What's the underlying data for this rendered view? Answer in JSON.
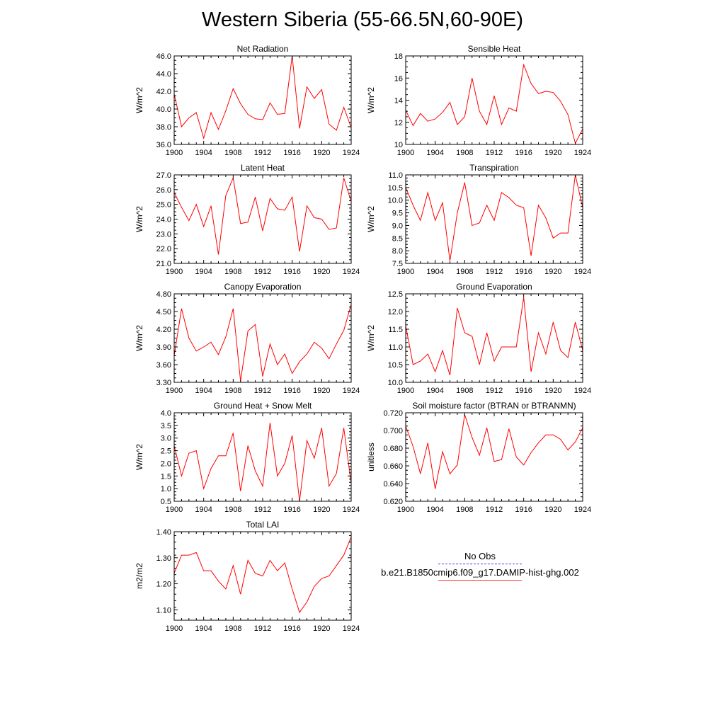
{
  "title": "Western Siberia (55-66.5N,60-90E)",
  "colors": {
    "model_line": "#ff0000",
    "obs_line": "#0000ff",
    "axis": "#000000"
  },
  "legend": {
    "placement": "bottom-right",
    "entries": [
      {
        "label": "No Obs",
        "style": "dashed",
        "color": "#0000ff"
      },
      {
        "label": "b.e21.B1850cmip6.f09_g17.DAMIP-hist-ghg.002",
        "style": "solid",
        "color": "#ff0000"
      }
    ]
  },
  "chart_data": [
    {
      "type": "line",
      "title": "Net Radiation",
      "ylabel": "W/m^2",
      "xlim": [
        1900,
        1924
      ],
      "ylim": [
        36.0,
        46.0
      ],
      "x_ticks": [
        1900,
        1904,
        1908,
        1912,
        1916,
        1920,
        1924
      ],
      "x_tick_labels": [
        "1900",
        "1904",
        "1908",
        "1912",
        "1916",
        "1920",
        "1924"
      ],
      "y_ticks": [
        36.0,
        38.0,
        40.0,
        42.0,
        44.0,
        46.0
      ],
      "y_tick_labels": [
        "36.0",
        "38.0",
        "40.0",
        "42.0",
        "44.0",
        "46.0"
      ],
      "x": [
        1900,
        1901,
        1902,
        1903,
        1904,
        1905,
        1906,
        1907,
        1908,
        1909,
        1910,
        1911,
        1912,
        1913,
        1914,
        1915,
        1916,
        1917,
        1918,
        1919,
        1920,
        1921,
        1922,
        1923,
        1924
      ],
      "series": [
        {
          "values": [
            41.7,
            38.0,
            39.0,
            39.6,
            36.7,
            39.6,
            37.7,
            39.8,
            42.3,
            40.6,
            39.4,
            38.9,
            38.8,
            40.7,
            39.4,
            39.5,
            46.0,
            37.8,
            42.5,
            41.2,
            42.2,
            38.3,
            37.6,
            40.2,
            37.9
          ]
        }
      ]
    },
    {
      "type": "line",
      "title": "Sensible Heat",
      "ylabel": "W/m^2",
      "xlim": [
        1900,
        1924
      ],
      "ylim": [
        10,
        18
      ],
      "x_ticks": [
        1900,
        1904,
        1908,
        1912,
        1916,
        1920,
        1924
      ],
      "x_tick_labels": [
        "1900",
        "1904",
        "1908",
        "1912",
        "1916",
        "1920",
        "1924"
      ],
      "y_ticks": [
        10,
        12,
        14,
        16,
        18
      ],
      "y_tick_labels": [
        "10",
        "12",
        "14",
        "16",
        "18"
      ],
      "x": [
        1900,
        1901,
        1902,
        1903,
        1904,
        1905,
        1906,
        1907,
        1908,
        1909,
        1910,
        1911,
        1912,
        1913,
        1914,
        1915,
        1916,
        1917,
        1918,
        1919,
        1920,
        1921,
        1922,
        1923,
        1924
      ],
      "series": [
        {
          "values": [
            13.1,
            11.7,
            12.8,
            12.1,
            12.3,
            12.9,
            13.8,
            11.8,
            12.5,
            16.0,
            13.0,
            11.8,
            14.4,
            11.8,
            13.3,
            13.0,
            17.2,
            15.5,
            14.6,
            14.8,
            14.7,
            13.9,
            12.7,
            10.1,
            11.4
          ]
        }
      ]
    },
    {
      "type": "line",
      "title": "Latent Heat",
      "ylabel": "W/m^2",
      "xlim": [
        1900,
        1924
      ],
      "ylim": [
        21.0,
        27.0
      ],
      "x_ticks": [
        1900,
        1904,
        1908,
        1912,
        1916,
        1920,
        1924
      ],
      "x_tick_labels": [
        "1900",
        "1904",
        "1908",
        "1912",
        "1916",
        "1920",
        "1924"
      ],
      "y_ticks": [
        21.0,
        22.0,
        23.0,
        24.0,
        25.0,
        26.0,
        27.0
      ],
      "y_tick_labels": [
        "21.0",
        "22.0",
        "23.0",
        "24.0",
        "25.0",
        "26.0",
        "27.0"
      ],
      "x": [
        1900,
        1901,
        1902,
        1903,
        1904,
        1905,
        1906,
        1907,
        1908,
        1909,
        1910,
        1911,
        1912,
        1913,
        1914,
        1915,
        1916,
        1917,
        1918,
        1919,
        1920,
        1921,
        1922,
        1923,
        1924
      ],
      "series": [
        {
          "values": [
            25.8,
            24.8,
            23.9,
            25.0,
            23.5,
            24.9,
            21.6,
            25.6,
            26.8,
            23.7,
            23.8,
            25.5,
            23.2,
            25.4,
            24.7,
            24.6,
            25.5,
            21.8,
            24.9,
            24.1,
            24.0,
            23.3,
            23.4,
            26.8,
            25.2
          ]
        }
      ]
    },
    {
      "type": "line",
      "title": "Transpiration",
      "ylabel": "W/m^2",
      "xlim": [
        1900,
        1924
      ],
      "ylim": [
        7.5,
        11.0
      ],
      "x_ticks": [
        1900,
        1904,
        1908,
        1912,
        1916,
        1920,
        1924
      ],
      "x_tick_labels": [
        "1900",
        "1904",
        "1908",
        "1912",
        "1916",
        "1920",
        "1924"
      ],
      "y_ticks": [
        7.5,
        8.0,
        8.5,
        9.0,
        9.5,
        10.0,
        10.5,
        11.0
      ],
      "y_tick_labels": [
        "7.5",
        "8.0",
        "8.5",
        "9.0",
        "9.5",
        "10.0",
        "10.5",
        "11.0"
      ],
      "x": [
        1900,
        1901,
        1902,
        1903,
        1904,
        1905,
        1906,
        1907,
        1908,
        1909,
        1910,
        1911,
        1912,
        1913,
        1914,
        1915,
        1916,
        1917,
        1918,
        1919,
        1920,
        1921,
        1922,
        1923,
        1924
      ],
      "series": [
        {
          "values": [
            10.5,
            9.8,
            9.2,
            10.3,
            9.2,
            9.9,
            7.6,
            9.5,
            10.7,
            9.0,
            9.1,
            9.8,
            9.2,
            10.3,
            10.1,
            9.8,
            9.7,
            7.8,
            9.8,
            9.3,
            8.5,
            8.7,
            8.7,
            11.0,
            9.7
          ]
        }
      ]
    },
    {
      "type": "line",
      "title": "Canopy Evaporation",
      "ylabel": "W/m^2",
      "xlim": [
        1900,
        1924
      ],
      "ylim": [
        3.3,
        4.8
      ],
      "x_ticks": [
        1900,
        1904,
        1908,
        1912,
        1916,
        1920,
        1924
      ],
      "x_tick_labels": [
        "1900",
        "1904",
        "1908",
        "1912",
        "1916",
        "1920",
        "1924"
      ],
      "y_ticks": [
        3.3,
        3.6,
        3.9,
        4.2,
        4.5,
        4.8
      ],
      "y_tick_labels": [
        "3.30",
        "3.60",
        "3.90",
        "4.20",
        "4.50",
        "4.80"
      ],
      "x": [
        1900,
        1901,
        1902,
        1903,
        1904,
        1905,
        1906,
        1907,
        1908,
        1909,
        1910,
        1911,
        1912,
        1913,
        1914,
        1915,
        1916,
        1917,
        1918,
        1919,
        1920,
        1921,
        1922,
        1923,
        1924
      ],
      "series": [
        {
          "values": [
            3.75,
            4.55,
            4.05,
            3.83,
            3.9,
            3.98,
            3.77,
            4.07,
            4.55,
            3.32,
            4.17,
            4.28,
            3.4,
            3.95,
            3.6,
            3.78,
            3.45,
            3.65,
            3.78,
            3.98,
            3.88,
            3.7,
            3.95,
            4.18,
            4.62
          ]
        }
      ]
    },
    {
      "type": "line",
      "title": "Ground Evaporation",
      "ylabel": "W/m^2",
      "xlim": [
        1900,
        1924
      ],
      "ylim": [
        10.0,
        12.5
      ],
      "x_ticks": [
        1900,
        1904,
        1908,
        1912,
        1916,
        1920,
        1924
      ],
      "x_tick_labels": [
        "1900",
        "1904",
        "1908",
        "1912",
        "1916",
        "1920",
        "1924"
      ],
      "y_ticks": [
        10.0,
        10.5,
        11.0,
        11.5,
        12.0,
        12.5
      ],
      "y_tick_labels": [
        "10.0",
        "10.5",
        "11.0",
        "11.5",
        "12.0",
        "12.5"
      ],
      "x": [
        1900,
        1901,
        1902,
        1903,
        1904,
        1905,
        1906,
        1907,
        1908,
        1909,
        1910,
        1911,
        1912,
        1913,
        1914,
        1915,
        1916,
        1917,
        1918,
        1919,
        1920,
        1921,
        1922,
        1923,
        1924
      ],
      "series": [
        {
          "values": [
            11.6,
            10.5,
            10.6,
            10.8,
            10.3,
            10.9,
            10.2,
            12.1,
            11.4,
            11.3,
            10.5,
            11.4,
            10.6,
            11.0,
            11.0,
            11.0,
            12.4,
            10.3,
            11.4,
            10.8,
            11.7,
            10.9,
            10.7,
            11.7,
            10.9
          ]
        }
      ]
    },
    {
      "type": "line",
      "title": "Ground Heat + Snow Melt",
      "ylabel": "W/m^2",
      "xlim": [
        1900,
        1924
      ],
      "ylim": [
        0.5,
        4.0
      ],
      "x_ticks": [
        1900,
        1904,
        1908,
        1912,
        1916,
        1920,
        1924
      ],
      "x_tick_labels": [
        "1900",
        "1904",
        "1908",
        "1912",
        "1916",
        "1920",
        "1924"
      ],
      "y_ticks": [
        0.5,
        1.0,
        1.5,
        2.0,
        2.5,
        3.0,
        3.5,
        4.0
      ],
      "y_tick_labels": [
        "0.5",
        "1.0",
        "1.5",
        "2.0",
        "2.5",
        "3.0",
        "3.5",
        "4.0"
      ],
      "x": [
        1900,
        1901,
        1902,
        1903,
        1904,
        1905,
        1906,
        1907,
        1908,
        1909,
        1910,
        1911,
        1912,
        1913,
        1914,
        1915,
        1916,
        1917,
        1918,
        1919,
        1920,
        1921,
        1922,
        1923,
        1924
      ],
      "series": [
        {
          "values": [
            2.7,
            1.5,
            2.4,
            2.5,
            1.0,
            1.8,
            2.3,
            2.3,
            3.2,
            0.9,
            2.7,
            1.7,
            1.1,
            3.6,
            1.5,
            2.0,
            3.1,
            0.5,
            2.9,
            2.2,
            3.4,
            1.1,
            1.6,
            3.4,
            1.2
          ]
        }
      ]
    },
    {
      "type": "line",
      "title": "Soil moisture factor (BTRAN or BTRANMN)",
      "ylabel": "unitless",
      "xlim": [
        1900,
        1924
      ],
      "ylim": [
        0.62,
        0.72
      ],
      "x_ticks": [
        1900,
        1904,
        1908,
        1912,
        1916,
        1920,
        1924
      ],
      "x_tick_labels": [
        "1900",
        "1904",
        "1908",
        "1912",
        "1916",
        "1920",
        "1924"
      ],
      "y_ticks": [
        0.62,
        0.64,
        0.66,
        0.68,
        0.7,
        0.72
      ],
      "y_tick_labels": [
        "0.620",
        "0.640",
        "0.660",
        "0.680",
        "0.700",
        "0.720"
      ],
      "x": [
        1900,
        1901,
        1902,
        1903,
        1904,
        1905,
        1906,
        1907,
        1908,
        1909,
        1910,
        1911,
        1912,
        1913,
        1914,
        1915,
        1916,
        1917,
        1918,
        1919,
        1920,
        1921,
        1922,
        1923,
        1924
      ],
      "series": [
        {
          "values": [
            0.705,
            0.682,
            0.651,
            0.686,
            0.634,
            0.676,
            0.651,
            0.661,
            0.718,
            0.692,
            0.672,
            0.703,
            0.665,
            0.667,
            0.702,
            0.67,
            0.661,
            0.675,
            0.686,
            0.695,
            0.695,
            0.69,
            0.678,
            0.687,
            0.703
          ]
        }
      ]
    },
    {
      "type": "line",
      "title": "Total LAI",
      "ylabel": "m2/m2",
      "xlim": [
        1900,
        1924
      ],
      "ylim": [
        1.06,
        1.4
      ],
      "x_ticks": [
        1900,
        1904,
        1908,
        1912,
        1916,
        1920,
        1924
      ],
      "x_tick_labels": [
        "1900",
        "1904",
        "1908",
        "1912",
        "1916",
        "1920",
        "1924"
      ],
      "y_ticks": [
        1.1,
        1.2,
        1.3,
        1.4
      ],
      "y_tick_labels": [
        "1.10",
        "1.20",
        "1.30",
        "1.40"
      ],
      "x": [
        1900,
        1901,
        1902,
        1903,
        1904,
        1905,
        1906,
        1907,
        1908,
        1909,
        1910,
        1911,
        1912,
        1913,
        1914,
        1915,
        1916,
        1917,
        1918,
        1919,
        1920,
        1921,
        1922,
        1923,
        1924
      ],
      "series": [
        {
          "values": [
            1.24,
            1.31,
            1.31,
            1.32,
            1.25,
            1.25,
            1.21,
            1.18,
            1.27,
            1.16,
            1.29,
            1.24,
            1.23,
            1.29,
            1.25,
            1.28,
            1.18,
            1.09,
            1.13,
            1.19,
            1.22,
            1.23,
            1.27,
            1.31,
            1.38
          ]
        }
      ]
    }
  ]
}
